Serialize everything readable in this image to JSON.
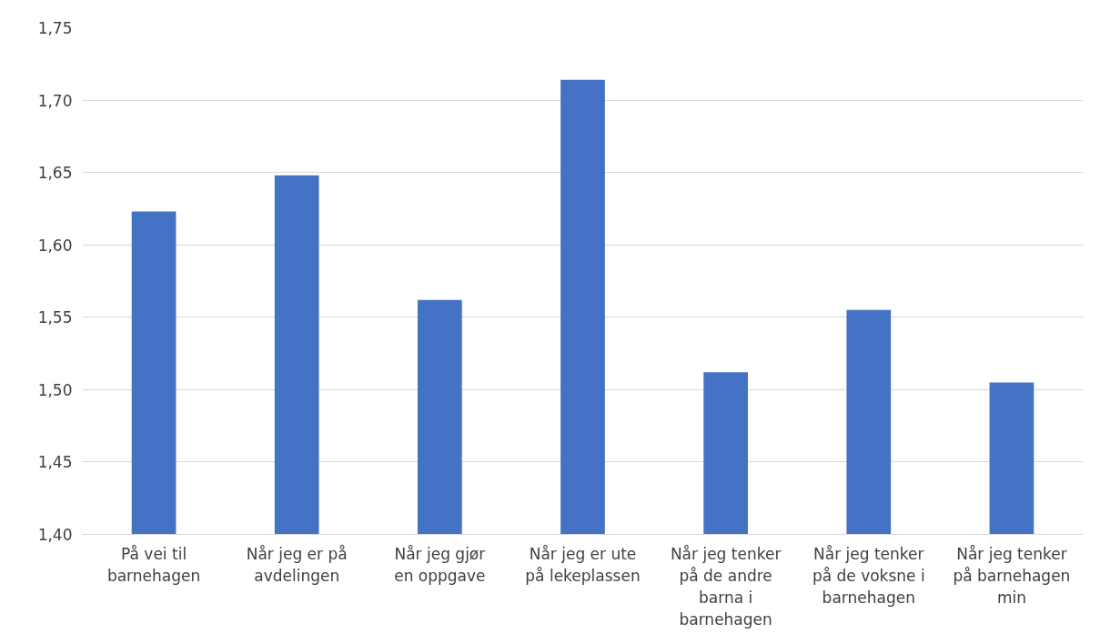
{
  "chart_data": {
    "type": "bar",
    "categories": [
      "På vei til barnehagen",
      "Når jeg er på avdelingen",
      "Når jeg gjør en oppgave",
      "Når jeg er ute på lekeplassen",
      "Når jeg tenker på de andre barna i barnehagen",
      "Når jeg tenker på de voksne i barnehagen",
      "Når jeg tenker på barnehagen min"
    ],
    "values": [
      1.623,
      1.648,
      1.562,
      1.714,
      1.512,
      1.555,
      1.505
    ],
    "color": "#4472c4",
    "ylim": [
      1.4,
      1.75
    ],
    "yticks": [
      {
        "value": 1.4,
        "label": "1,40"
      },
      {
        "value": 1.45,
        "label": "1,45"
      },
      {
        "value": 1.5,
        "label": "1,50"
      },
      {
        "value": 1.55,
        "label": "1,55"
      },
      {
        "value": 1.6,
        "label": "1,60"
      },
      {
        "value": 1.65,
        "label": "1,65"
      },
      {
        "value": 1.7,
        "label": "1,70"
      },
      {
        "value": 1.75,
        "label": "1,75"
      }
    ],
    "grid": "y"
  }
}
